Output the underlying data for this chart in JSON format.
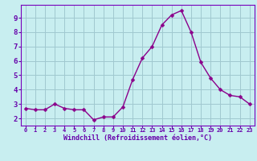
{
  "x": [
    0,
    1,
    2,
    3,
    4,
    5,
    6,
    7,
    8,
    9,
    10,
    11,
    12,
    13,
    14,
    15,
    16,
    17,
    18,
    19,
    20,
    21,
    22,
    23
  ],
  "y": [
    2.7,
    2.6,
    2.6,
    3.0,
    2.7,
    2.6,
    2.6,
    1.9,
    2.1,
    2.1,
    2.8,
    4.7,
    6.2,
    7.0,
    8.5,
    9.2,
    9.5,
    8.0,
    5.9,
    4.8,
    4.0,
    3.6,
    3.5,
    3.0
  ],
  "line_color": "#8b008b",
  "marker": "D",
  "marker_size": 2.5,
  "bg_color": "#c8eef0",
  "grid_color": "#a0c8d0",
  "xlabel": "Windchill (Refroidissement éolien,°C)",
  "xlabel_color": "#6600aa",
  "tick_color": "#6600aa",
  "ylim": [
    1.5,
    9.9
  ],
  "xlim": [
    -0.5,
    23.5
  ],
  "yticks": [
    2,
    3,
    4,
    5,
    6,
    7,
    8,
    9
  ],
  "xtick_labels": [
    "0",
    "1",
    "2",
    "3",
    "4",
    "5",
    "6",
    "7",
    "8",
    "9",
    "10",
    "11",
    "12",
    "13",
    "14",
    "15",
    "16",
    "17",
    "18",
    "19",
    "20",
    "21",
    "22",
    "23"
  ],
  "spine_color": "#6600aa",
  "border_color": "#7700bb"
}
